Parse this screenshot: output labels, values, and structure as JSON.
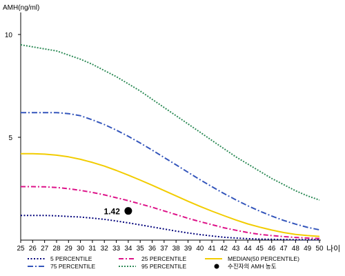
{
  "chart_data": {
    "type": "line",
    "ylabel": "AMH(ng/ml)",
    "xlabel": "나이",
    "x": [
      25,
      26,
      27,
      28,
      29,
      30,
      31,
      32,
      33,
      34,
      35,
      36,
      37,
      38,
      39,
      40,
      41,
      42,
      43,
      44,
      45,
      46,
      47,
      48,
      49,
      50
    ],
    "xlim": [
      25,
      50
    ],
    "ylim": [
      0,
      11
    ],
    "yticks": [
      5,
      10
    ],
    "series": [
      {
        "name": "5 PERCENTILE",
        "color": "#00007a",
        "dash": "2,2.5",
        "width": 2,
        "values": [
          1.2,
          1.2,
          1.2,
          1.18,
          1.15,
          1.12,
          1.07,
          1.01,
          0.93,
          0.84,
          0.74,
          0.64,
          0.54,
          0.44,
          0.35,
          0.27,
          0.2,
          0.14,
          0.1,
          0.07,
          0.05,
          0.04,
          0.03,
          0.02,
          0.02,
          0.02
        ]
      },
      {
        "name": "25 PERCENTILE",
        "color": "#dd1188",
        "dash": "7,3,2,3",
        "width": 2,
        "values": [
          2.6,
          2.6,
          2.59,
          2.56,
          2.5,
          2.42,
          2.32,
          2.2,
          2.06,
          1.92,
          1.76,
          1.6,
          1.42,
          1.24,
          1.06,
          0.9,
          0.75,
          0.6,
          0.48,
          0.37,
          0.28,
          0.22,
          0.17,
          0.13,
          0.1,
          0.08
        ]
      },
      {
        "name": "MEDIAN(50 PERCENTILE)",
        "color": "#f2cc00",
        "dash": "",
        "width": 2,
        "values": [
          4.2,
          4.2,
          4.18,
          4.13,
          4.05,
          3.93,
          3.78,
          3.6,
          3.39,
          3.16,
          2.92,
          2.67,
          2.41,
          2.15,
          1.89,
          1.64,
          1.41,
          1.19,
          0.98,
          0.79,
          0.63,
          0.49,
          0.37,
          0.28,
          0.22,
          0.18
        ]
      },
      {
        "name": "75 PERCENTILE",
        "color": "#3355bb",
        "dash": "8,3,2,3",
        "width": 2,
        "values": [
          6.2,
          6.2,
          6.2,
          6.2,
          6.15,
          6.05,
          5.85,
          5.62,
          5.35,
          5.05,
          4.72,
          4.38,
          4.02,
          3.66,
          3.3,
          2.94,
          2.6,
          2.27,
          1.96,
          1.67,
          1.41,
          1.17,
          0.96,
          0.78,
          0.62,
          0.5
        ]
      },
      {
        "name": "95 PERCENTILE",
        "color": "#2e8b57",
        "dash": "2,2",
        "width": 2,
        "values": [
          9.5,
          9.4,
          9.3,
          9.2,
          9.0,
          8.8,
          8.55,
          8.25,
          7.95,
          7.6,
          7.25,
          6.85,
          6.45,
          6.05,
          5.65,
          5.25,
          4.85,
          4.45,
          4.05,
          3.7,
          3.35,
          3.0,
          2.7,
          2.4,
          2.15,
          1.95
        ]
      }
    ],
    "marker": {
      "name": "수진자의 AMH 농도",
      "x": 34,
      "y": 1.42,
      "label": "1.42",
      "color": "#000000"
    },
    "legend": {
      "placement": "bottom",
      "order": [
        "5 PERCENTILE",
        "25 PERCENTILE",
        "MEDIAN(50 PERCENTILE)",
        "75 PERCENTILE",
        "95 PERCENTILE",
        "수진자의 AMH 농도"
      ]
    },
    "grid": false
  }
}
